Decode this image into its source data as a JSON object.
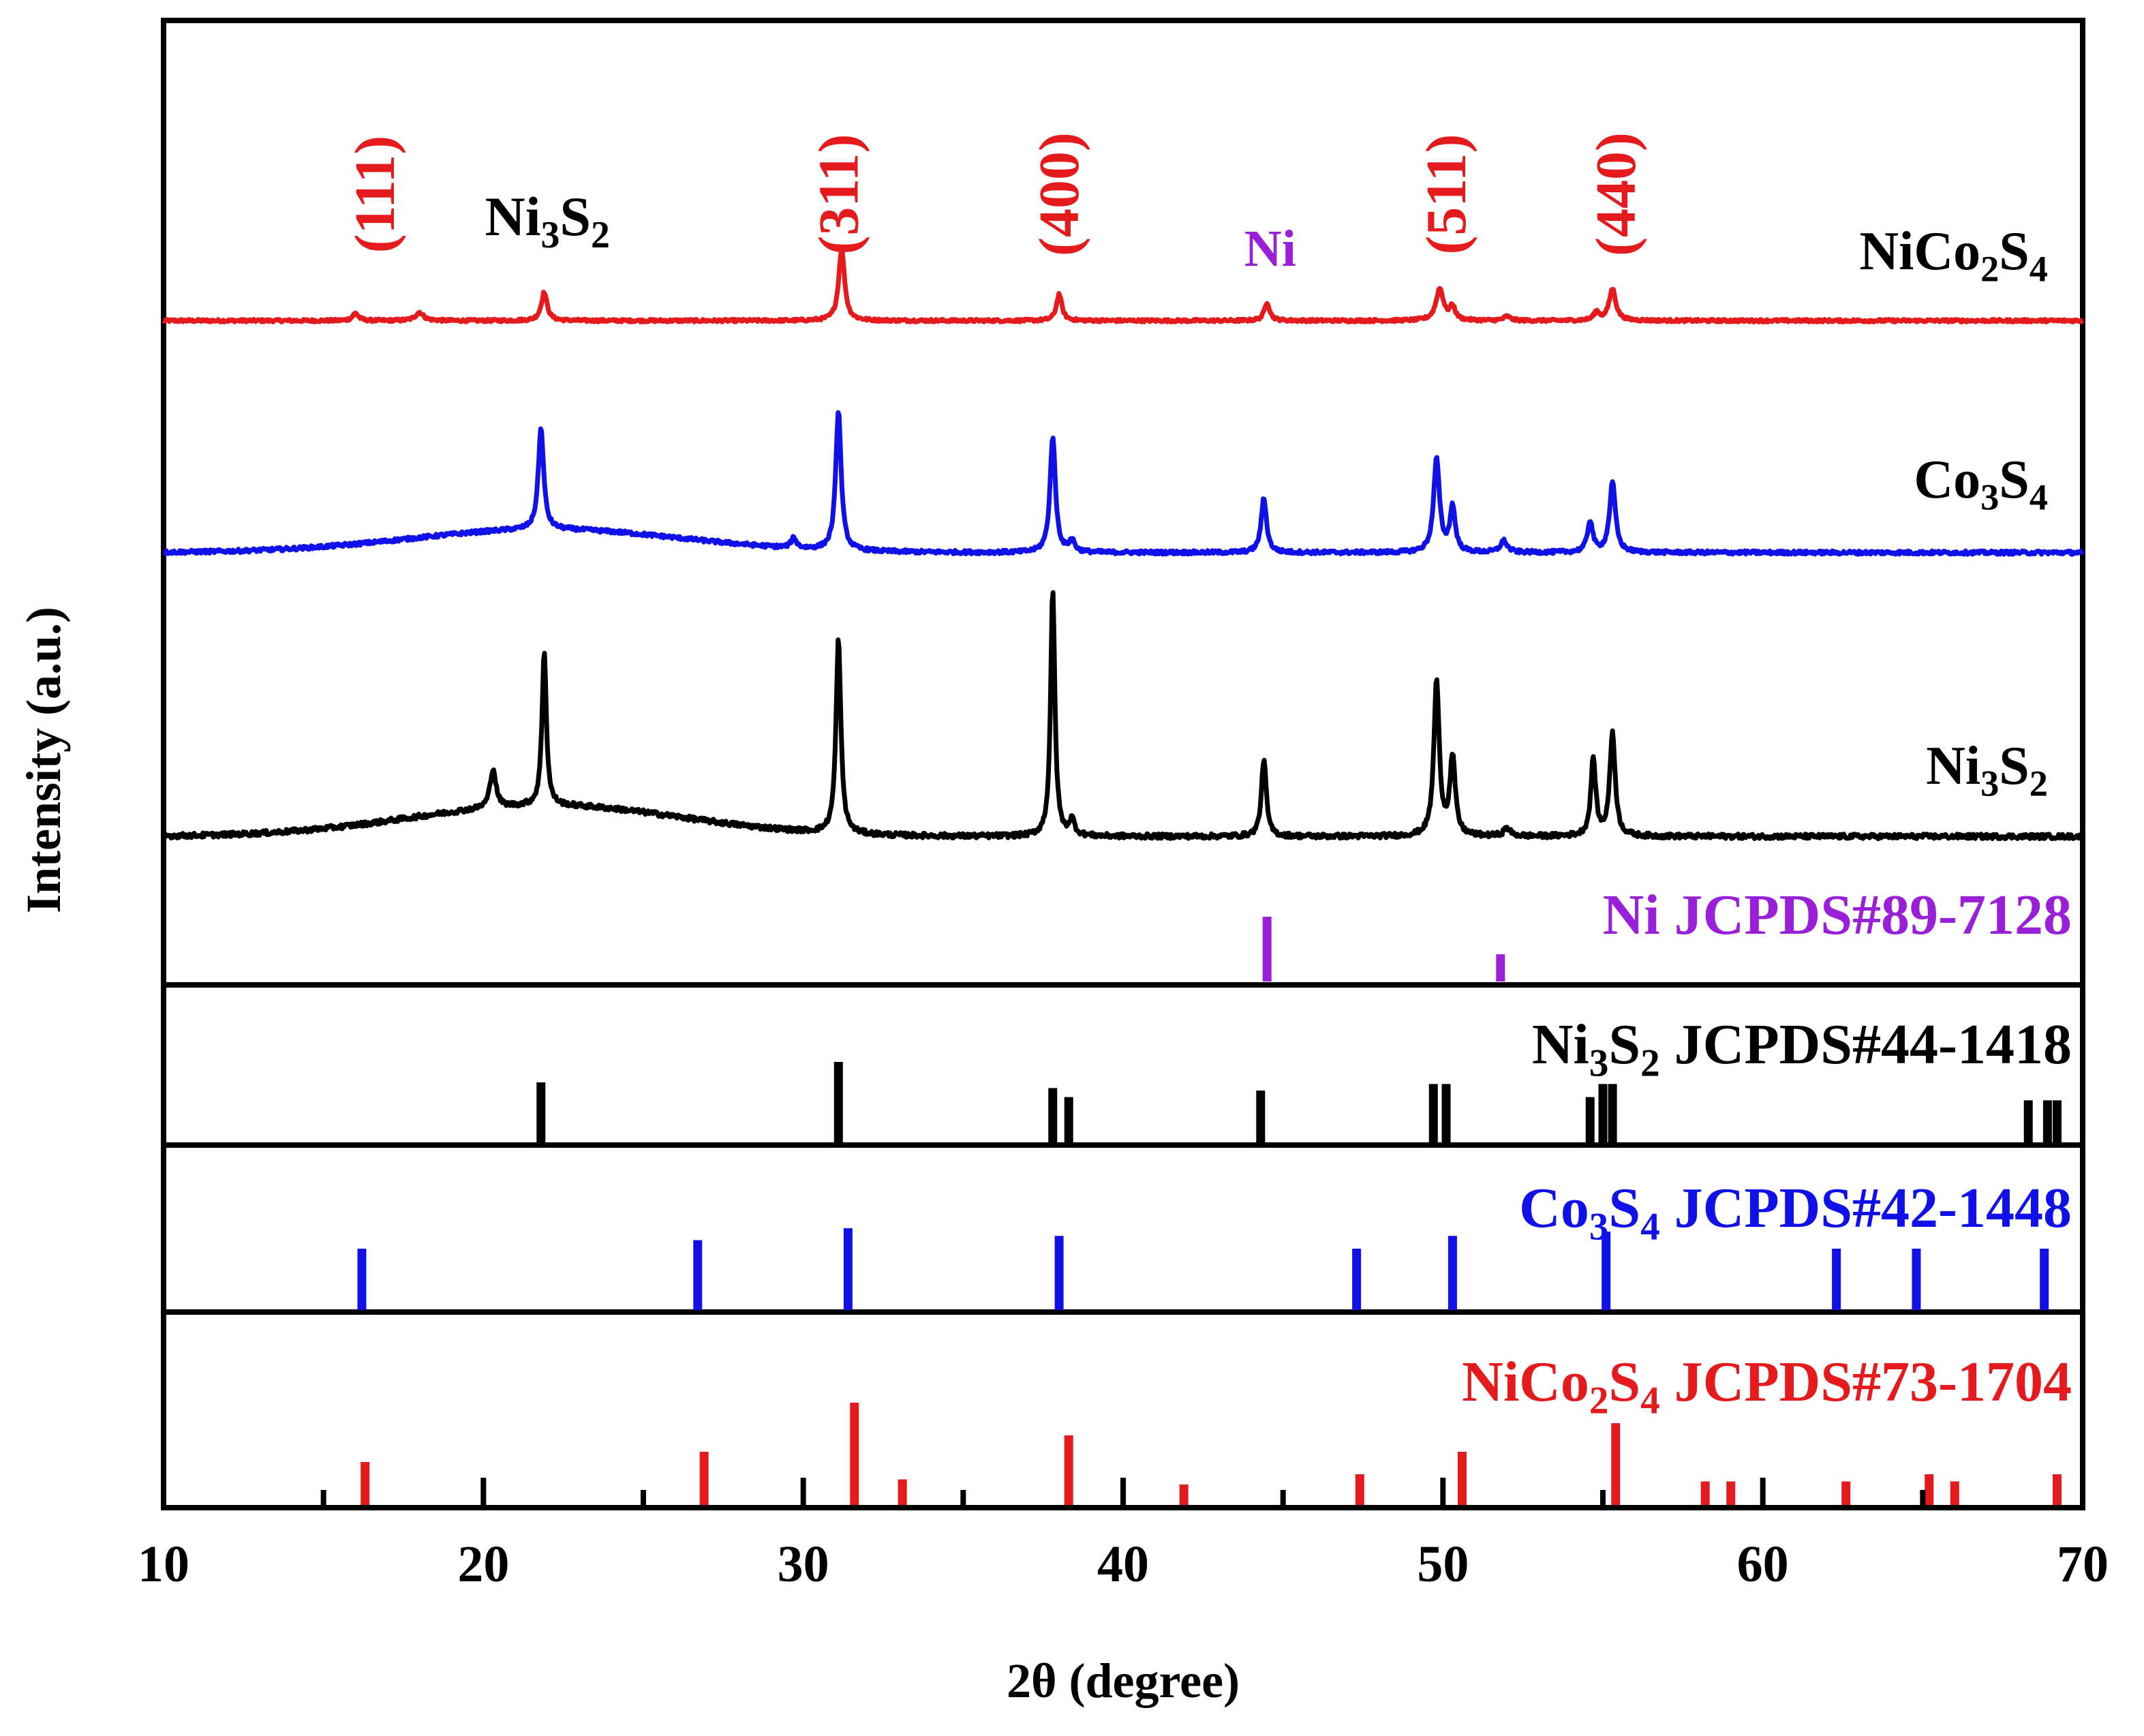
{
  "chart_data": {
    "type": "line",
    "title": "",
    "xlabel": "2θ (degree)",
    "ylabel": "Intensity (a.u.)",
    "xlim": [
      10,
      70
    ],
    "x_ticks": [
      10,
      20,
      30,
      40,
      50,
      60,
      70
    ],
    "colors": {
      "red": "#e41a1c",
      "blue": "#1010e8",
      "black": "#000000",
      "purple": "#9a1fd8"
    },
    "series": [
      {
        "name": "NiCo2S4",
        "color": "#e41a1c",
        "baseline": 0.1,
        "noise": 0.008,
        "hump": 0.0,
        "peaks": [
          [
            16.0,
            0.045,
            0.22
          ],
          [
            18.0,
            0.05,
            0.3
          ],
          [
            21.9,
            0.17,
            0.22
          ],
          [
            31.2,
            0.43,
            0.22
          ],
          [
            38.0,
            0.16,
            0.2
          ],
          [
            44.5,
            0.11,
            0.2
          ],
          [
            49.9,
            0.19,
            0.28
          ],
          [
            50.3,
            0.08,
            0.2
          ],
          [
            52.0,
            0.025,
            0.25
          ],
          [
            54.8,
            0.05,
            0.2
          ],
          [
            55.3,
            0.19,
            0.25
          ]
        ]
      },
      {
        "name": "Co3S4",
        "color": "#1010e8",
        "baseline": 0.05,
        "noise": 0.009,
        "hump": 0.12,
        "peaks": [
          [
            21.8,
            0.52,
            0.2
          ],
          [
            29.7,
            0.05,
            0.2
          ],
          [
            31.1,
            0.72,
            0.2
          ],
          [
            37.8,
            0.6,
            0.2
          ],
          [
            38.4,
            0.06,
            0.2
          ],
          [
            44.4,
            0.28,
            0.2
          ],
          [
            49.8,
            0.48,
            0.22
          ],
          [
            50.3,
            0.23,
            0.2
          ],
          [
            51.9,
            0.06,
            0.25
          ],
          [
            54.6,
            0.16,
            0.2
          ],
          [
            55.3,
            0.36,
            0.22
          ]
        ]
      },
      {
        "name": "Ni3S2",
        "color": "#000000",
        "baseline": 0.06,
        "noise": 0.009,
        "hump": 0.12,
        "peaks": [
          [
            20.3,
            0.15,
            0.22
          ],
          [
            21.9,
            0.6,
            0.16
          ],
          [
            31.1,
            0.75,
            0.18
          ],
          [
            37.8,
            0.95,
            0.16
          ],
          [
            38.4,
            0.06,
            0.2
          ],
          [
            44.4,
            0.3,
            0.18
          ],
          [
            49.8,
            0.6,
            0.2
          ],
          [
            50.3,
            0.3,
            0.2
          ],
          [
            52.0,
            0.03,
            0.25
          ],
          [
            54.7,
            0.3,
            0.18
          ],
          [
            55.3,
            0.4,
            0.2
          ]
        ]
      }
    ],
    "series_labels": [
      {
        "main": "NiCo",
        "s1": "2",
        "mid": "S",
        "s2": "4",
        "color": "#000000"
      },
      {
        "main": "Co",
        "s1": "3",
        "mid": "S",
        "s2": "4",
        "color": "#000000"
      },
      {
        "main": "Ni",
        "s1": "3",
        "mid": "S",
        "s2": "2",
        "color": "#000000"
      }
    ],
    "peak_annotations": [
      {
        "text": "(111)",
        "x": 16.6,
        "color": "#e41a1c",
        "rotated": true
      },
      {
        "text": "(311)",
        "x": 31.1,
        "color": "#e41a1c",
        "rotated": true
      },
      {
        "text": "(400)",
        "x": 38.0,
        "color": "#e41a1c",
        "rotated": true
      },
      {
        "text": "(511)",
        "x": 50.1,
        "color": "#e41a1c",
        "rotated": true
      },
      {
        "text": "(440)",
        "x": 55.4,
        "color": "#e41a1c",
        "rotated": true
      },
      {
        "text": "Ni",
        "x": 44.6,
        "color": "#9a1fd8",
        "rotated": false
      }
    ],
    "ni3s2_annotation": {
      "main": "Ni",
      "s1": "3",
      "mid": "S",
      "s2": "2",
      "x": 22.0
    },
    "references": [
      {
        "name": "Ni JCPDS#89-7128",
        "label_main": "Ni JCPDS#89-7128",
        "color": "#9a1fd8",
        "lines": [
          [
            44.5,
            1.0
          ],
          [
            51.8,
            0.42
          ]
        ]
      },
      {
        "name": "Ni3S2 JCPDS#44-1418",
        "label_main": "Ni",
        "label_s1": "3",
        "label_mid": "S",
        "label_s2": "2",
        "label_rest": " JCPDS#44-1418",
        "color": "#000000",
        "lines": [
          [
            21.8,
            0.75
          ],
          [
            31.1,
            1.0
          ],
          [
            37.8,
            0.68
          ],
          [
            38.3,
            0.57
          ],
          [
            44.3,
            0.65
          ],
          [
            49.7,
            0.73
          ],
          [
            50.1,
            0.73
          ],
          [
            54.6,
            0.57
          ],
          [
            55.0,
            0.73
          ],
          [
            55.3,
            0.73
          ],
          [
            68.3,
            0.53
          ],
          [
            68.9,
            0.53
          ],
          [
            69.2,
            0.53
          ]
        ]
      },
      {
        "name": "Co3S4 JCPDS#42-1448",
        "label_main": "Co",
        "label_s1": "3",
        "label_mid": "S",
        "label_s2": "4",
        "label_rest": " JCPDS#42-1448",
        "color": "#1010e8",
        "lines": [
          [
            16.2,
            0.72
          ],
          [
            26.7,
            0.82
          ],
          [
            31.4,
            0.96
          ],
          [
            38.0,
            0.87
          ],
          [
            47.3,
            0.72
          ],
          [
            50.3,
            0.87
          ],
          [
            55.1,
            0.92
          ],
          [
            62.3,
            0.72
          ],
          [
            64.8,
            0.72
          ],
          [
            68.8,
            0.72
          ]
        ]
      },
      {
        "name": "NiCo2S4 JCPDS#73-1704",
        "label_main": "NiCo",
        "label_s1": "2",
        "label_mid": "S",
        "label_s2": "4",
        "label_rest": " JCPDS#73-1704",
        "color": "#e41a1c",
        "lines": [
          [
            16.3,
            0.42
          ],
          [
            26.9,
            0.52
          ],
          [
            31.6,
            1.0
          ],
          [
            33.1,
            0.25
          ],
          [
            38.3,
            0.68
          ],
          [
            41.9,
            0.2
          ],
          [
            47.4,
            0.3
          ],
          [
            50.6,
            0.52
          ],
          [
            55.4,
            0.8
          ],
          [
            58.2,
            0.23
          ],
          [
            59.0,
            0.23
          ],
          [
            62.6,
            0.23
          ],
          [
            65.2,
            0.3
          ],
          [
            66.0,
            0.23
          ],
          [
            69.2,
            0.3
          ]
        ]
      }
    ]
  }
}
